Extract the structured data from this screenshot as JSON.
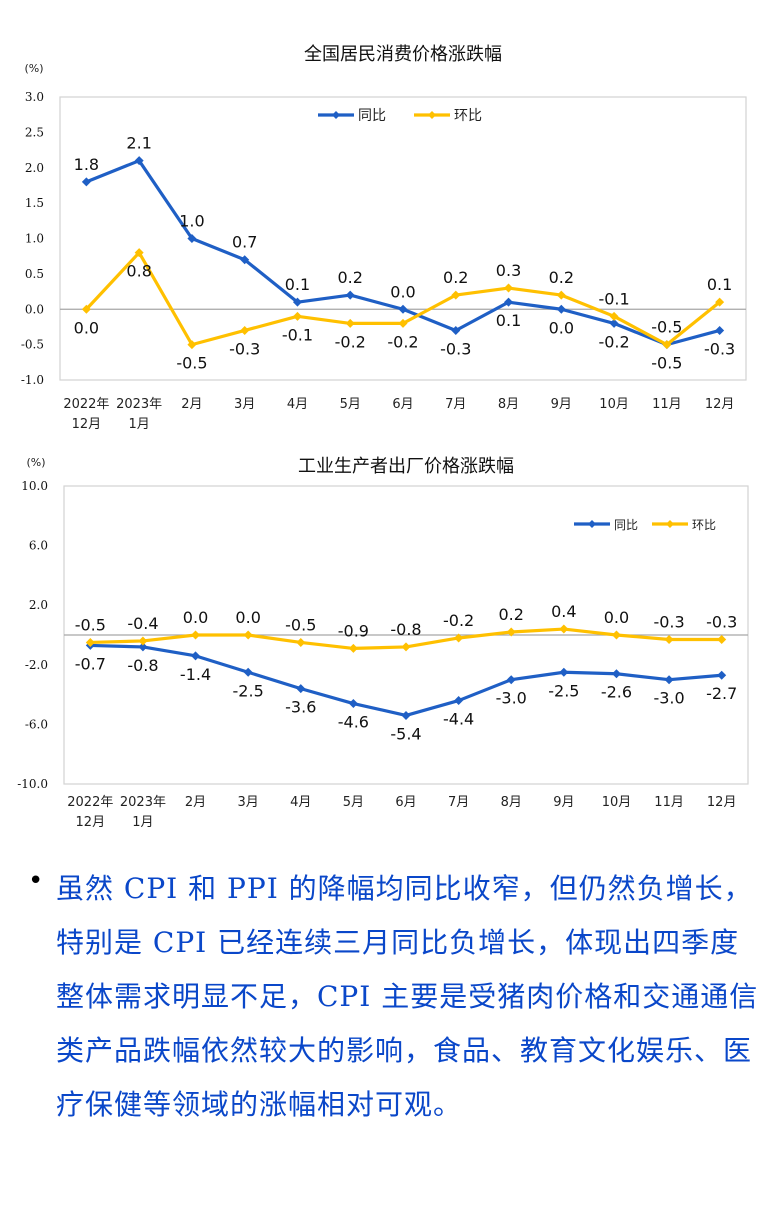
{
  "chart_data": [
    {
      "type": "line",
      "title": "全国居民消费价格涨跌幅",
      "unit": "(%)",
      "categories": [
        "2022年\n12月",
        "2023年\n1月",
        "2月",
        "3月",
        "4月",
        "5月",
        "6月",
        "7月",
        "8月",
        "9月",
        "10月",
        "11月",
        "12月"
      ],
      "ylim": [
        -1.0,
        3.0
      ],
      "yticks": [
        "3.0",
        "2.5",
        "2.0",
        "1.5",
        "1.0",
        "0.5",
        "0.0",
        "-0.5",
        "-1.0"
      ],
      "series": [
        {
          "name": "同比",
          "color": "#1f5fc5",
          "values": [
            1.8,
            2.1,
            1.0,
            0.7,
            0.1,
            0.2,
            0.0,
            -0.3,
            0.1,
            0.0,
            -0.2,
            -0.5,
            -0.3
          ]
        },
        {
          "name": "环比",
          "color": "#ffc000",
          "values": [
            0.0,
            0.8,
            -0.5,
            -0.3,
            -0.1,
            -0.2,
            -0.2,
            0.2,
            0.3,
            0.2,
            -0.1,
            -0.5,
            0.1
          ]
        }
      ],
      "legend_position": "top-center"
    },
    {
      "type": "line",
      "title": "工业生产者出厂价格涨跌幅",
      "unit": "(%)",
      "categories": [
        "2022年\n12月",
        "2023年\n1月",
        "2月",
        "3月",
        "4月",
        "5月",
        "6月",
        "7月",
        "8月",
        "9月",
        "10月",
        "11月",
        "12月"
      ],
      "ylim": [
        -10.0,
        10.0
      ],
      "yticks": [
        "10.0",
        "6.0",
        "2.0",
        "-2.0",
        "-6.0",
        "-10.0"
      ],
      "series": [
        {
          "name": "同比",
          "color": "#1f5fc5",
          "values": [
            -0.7,
            -0.8,
            -1.4,
            -2.5,
            -3.6,
            -4.6,
            -5.4,
            -4.4,
            -3.0,
            -2.5,
            -2.6,
            -3.0,
            -2.7
          ]
        },
        {
          "name": "环比",
          "color": "#ffc000",
          "values": [
            -0.5,
            -0.4,
            0.0,
            0.0,
            -0.5,
            -0.9,
            -0.8,
            -0.2,
            0.2,
            0.4,
            0.0,
            -0.3,
            -0.3
          ]
        }
      ],
      "legend_position": "top-right"
    }
  ],
  "note": {
    "bullet": "•",
    "text": "虽然 CPI 和 PPI 的降幅均同比收窄，但仍然负增长，特别是 CPI 已经连续三月同比负增长，体现出四季度整体需求明显不足，CPI 主要是受猪肉价格和交通通信类产品跌幅依然较大的影响，食品、教育文化娱乐、医疗保健等领域的涨幅相对可观。"
  }
}
